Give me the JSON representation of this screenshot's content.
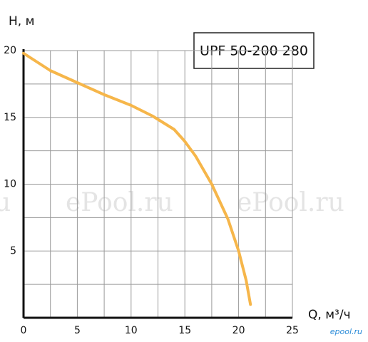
{
  "chart_data": {
    "type": "line",
    "title": "UPF 50-200 280",
    "y_label": "H, м",
    "x_label": "Q, м³/ч",
    "watermarks": [
      "u",
      "ePool.ru",
      "ePool.ru"
    ],
    "logo": "epool.ru",
    "xlim": [
      0,
      25
    ],
    "ylim": [
      0,
      20
    ],
    "xticks": [
      0,
      5,
      10,
      15,
      20,
      25
    ],
    "yticks": [
      5,
      10,
      15,
      20
    ],
    "xgrid": [
      2.5,
      5,
      7.5,
      10,
      12.5,
      15,
      17.5,
      20,
      22.5,
      25
    ],
    "ygrid": [
      2.5,
      5,
      7.5,
      10,
      12.5,
      15,
      17.5,
      20
    ],
    "grid": true,
    "x": [
      0,
      2.5,
      5,
      7.5,
      10,
      12,
      14,
      15,
      16,
      17.5,
      19,
      20,
      20.7,
      21.1
    ],
    "series": [
      {
        "name": "UPF 50-200 280",
        "color": "#f6b64a",
        "values": [
          19.8,
          18.5,
          17.6,
          16.7,
          15.9,
          15.1,
          14.1,
          13.2,
          12.1,
          10,
          7.4,
          5,
          2.8,
          1.0
        ]
      }
    ]
  }
}
